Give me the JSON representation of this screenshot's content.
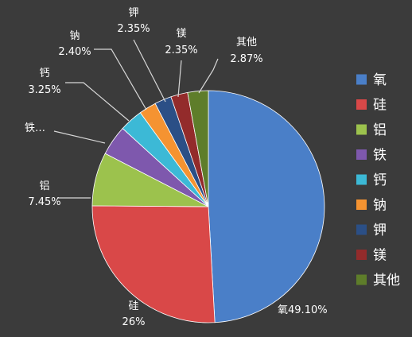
{
  "chart_data": {
    "type": "pie",
    "title": "",
    "legend_position": "right",
    "slices": [
      {
        "name": "氧",
        "value": 49.1,
        "label_name": "氧",
        "label_value": "49.10%",
        "color": "#4a7fc8"
      },
      {
        "name": "硅",
        "value": 26.0,
        "label_name": "硅",
        "label_value": "26%",
        "color": "#d94848"
      },
      {
        "name": "铝",
        "value": 7.45,
        "label_name": "铝",
        "label_value": "7.45%",
        "color": "#9cc24d"
      },
      {
        "name": "铁",
        "value": 4.2,
        "label_name": "铁…",
        "label_value": "",
        "color": "#7e58ad"
      },
      {
        "name": "钙",
        "value": 3.25,
        "label_name": "钙",
        "label_value": "3.25%",
        "color": "#3cb9d6"
      },
      {
        "name": "钠",
        "value": 2.4,
        "label_name": "钠",
        "label_value": "2.40%",
        "color": "#f59331"
      },
      {
        "name": "钾",
        "value": 2.35,
        "label_name": "钾",
        "label_value": "2.35%",
        "color": "#2b4f86"
      },
      {
        "name": "镁",
        "value": 2.35,
        "label_name": "镁",
        "label_value": "2.35%",
        "color": "#932b2b"
      },
      {
        "name": "其他",
        "value": 2.87,
        "label_name": "其他",
        "label_value": "2.87%",
        "color": "#5e7d2a"
      }
    ]
  }
}
